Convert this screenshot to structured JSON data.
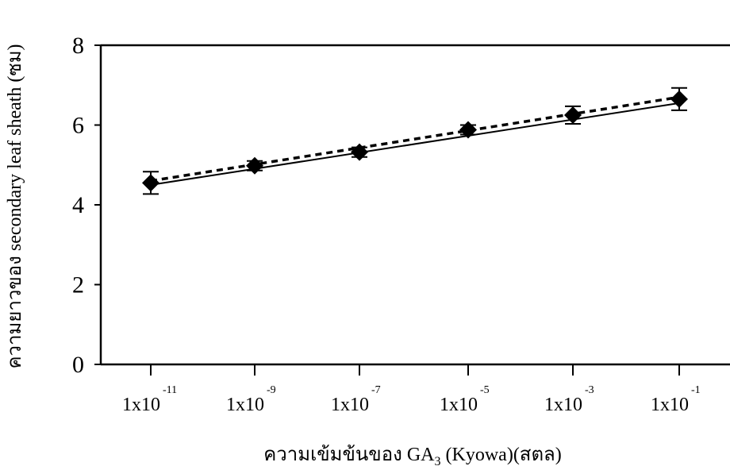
{
  "chart_data": {
    "type": "line",
    "xlabel": {
      "prefix": "ความเข้มข้นของ GA",
      "subscript": "3",
      "suffix": " (Kyowa)(สตล)"
    },
    "ylabel": "ความยาวของ secondary leaf sheath (ซม)",
    "ylim": [
      0,
      8
    ],
    "yticks": [
      "0",
      "2",
      "4",
      "6",
      "8"
    ],
    "categories": [
      {
        "base": "1x10",
        "exp": "-11"
      },
      {
        "base": "1x10",
        "exp": "-9"
      },
      {
        "base": "1x10",
        "exp": "-7"
      },
      {
        "base": "1x10",
        "exp": "-5"
      },
      {
        "base": "1x10",
        "exp": "-3"
      },
      {
        "base": "1x10",
        "exp": "-1"
      }
    ],
    "series": [
      {
        "values": [
          4.55,
          4.98,
          5.32,
          5.88,
          6.25,
          6.65
        ],
        "errors": [
          0.28,
          0.12,
          0.12,
          0.12,
          0.22,
          0.28
        ],
        "marker": "diamond"
      }
    ],
    "trendlines": [
      {
        "style": "solid",
        "start": 4.5,
        "end": 6.55
      },
      {
        "style": "dashed",
        "start": 4.6,
        "end": 6.7
      }
    ],
    "grid": false,
    "legend": "none"
  }
}
